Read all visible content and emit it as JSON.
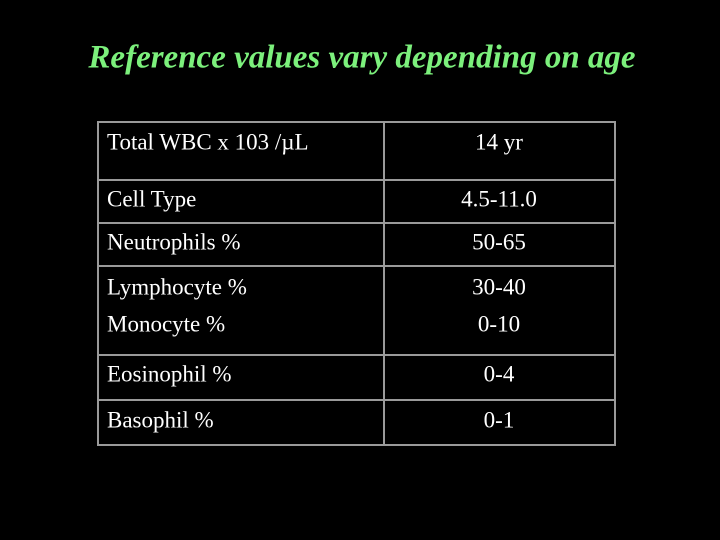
{
  "header": {
    "title": "Reference values vary depending on age"
  },
  "table": {
    "rows": [
      [
        "Total WBC x 103 /µL",
        "14 yr"
      ],
      [
        "Cell Type",
        "4.5-11.0"
      ],
      [
        "Neutrophils %",
        "50-65"
      ],
      [
        "Lymphocyte %",
        "30-40"
      ],
      [
        "Monocyte %",
        "0-10"
      ],
      [
        "Eosinophil %",
        "0-4"
      ],
      [
        "Basophil %",
        "0-1"
      ]
    ]
  }
}
